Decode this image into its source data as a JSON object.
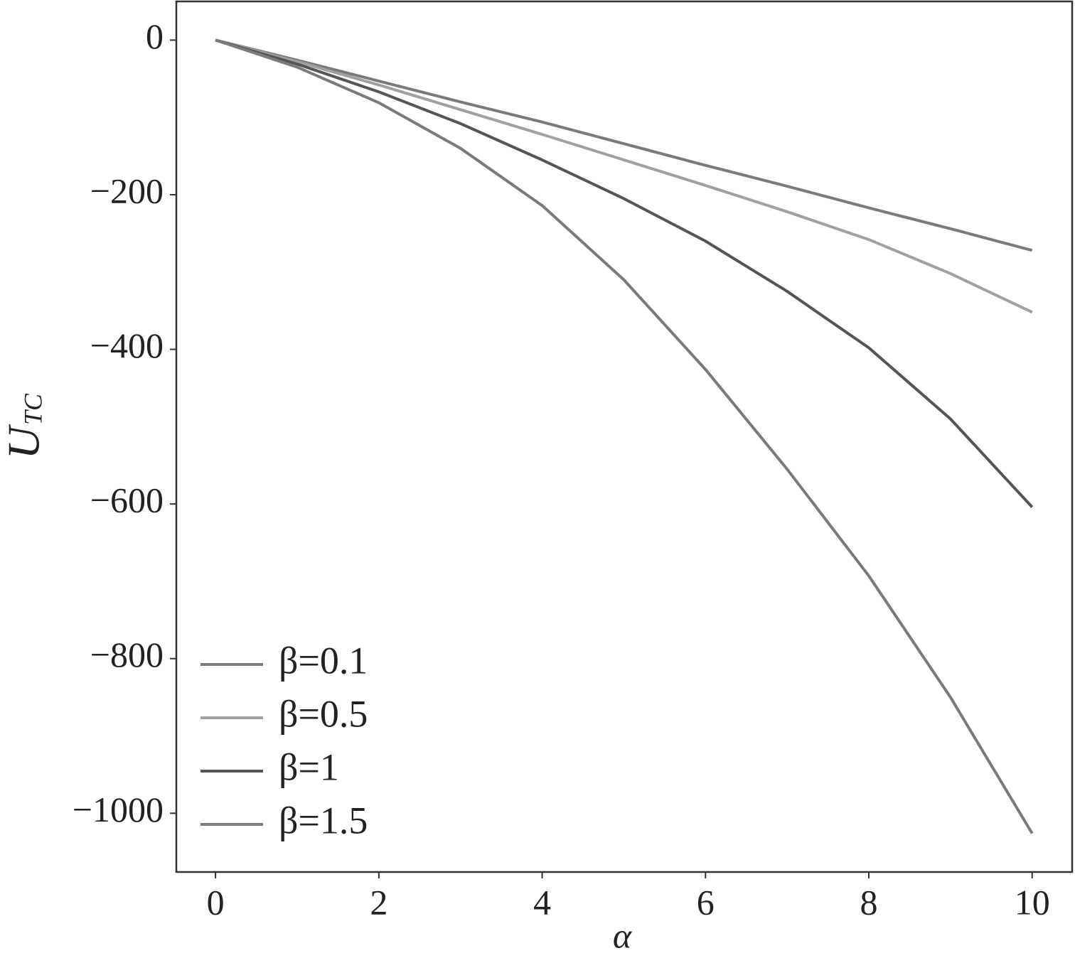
{
  "chart_data": {
    "type": "line",
    "xlabel": "α",
    "ylabel": "U",
    "ylabel_sub": "TC",
    "x": [
      0,
      1,
      2,
      3,
      4,
      5,
      6,
      7,
      8,
      9,
      10
    ],
    "series": [
      {
        "name": "β=0.1",
        "color": "#7a7a7a",
        "values": [
          0,
          -26,
          -53,
          -80,
          -106,
          -134,
          -162,
          -189,
          -217,
          -244,
          -272
        ]
      },
      {
        "name": "β=0.5",
        "color": "#a0a0a0",
        "values": [
          0,
          -28,
          -58,
          -90,
          -122,
          -155,
          -188,
          -222,
          -258,
          -302,
          -352
        ]
      },
      {
        "name": "β=1",
        "color": "#555555",
        "values": [
          0,
          -31,
          -67,
          -108,
          -155,
          -205,
          -260,
          -325,
          -398,
          -490,
          -604
        ]
      },
      {
        "name": "β=1.5",
        "color": "#7a7a7a",
        "values": [
          0,
          -35,
          -81,
          -140,
          -214,
          -310,
          -426,
          -555,
          -693,
          -850,
          -1026
        ]
      }
    ],
    "xlim": [
      -0.48,
      10.49
    ],
    "ylim": [
      -1076,
      50
    ],
    "xticks": [
      0,
      2,
      4,
      6,
      8,
      10
    ],
    "yticks": [
      0,
      {
        "value": -200,
        "label": "−200"
      },
      {
        "value": -400,
        "label": "−400"
      },
      {
        "value": -600,
        "label": "−600"
      },
      {
        "value": -800,
        "label": "−800"
      },
      {
        "value": -1000,
        "label": "−1000"
      }
    ],
    "legend": "lower-left"
  }
}
